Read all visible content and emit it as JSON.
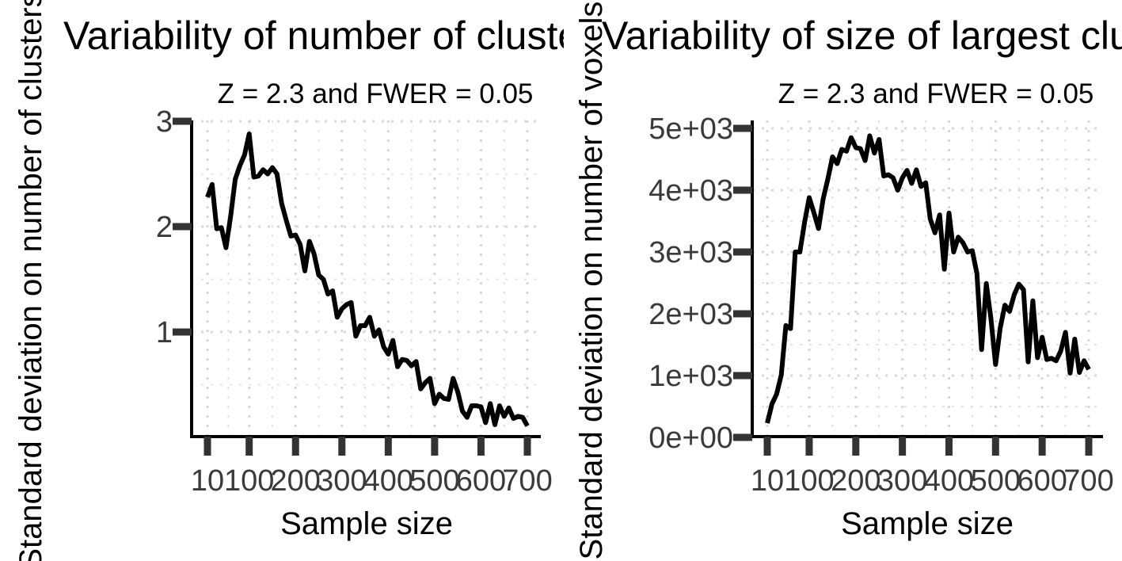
{
  "chart_data": [
    {
      "type": "line",
      "title": "Variability of number of clusters",
      "subtitle": "Z = 2.3 and FWER = 0.05",
      "xlabel": "Sample size",
      "ylabel": "Standard deviation on number of clusters",
      "xlim": [
        10,
        700
      ],
      "ylim": [
        0.1,
        3
      ],
      "x_ticks": [
        10,
        100,
        200,
        300,
        400,
        500,
        600,
        700
      ],
      "x_tick_labels": [
        "10",
        "100",
        "200",
        "300",
        "400",
        "500",
        "600",
        "700"
      ],
      "y_ticks": [
        1,
        2,
        3
      ],
      "y_tick_labels": [
        "1",
        "2",
        "3"
      ],
      "grid": true,
      "series_color": "#000000",
      "series": [
        {
          "x": [
            10,
            20,
            30,
            40,
            50,
            60,
            70,
            80,
            90,
            100,
            110,
            120,
            130,
            140,
            150,
            160,
            170,
            180,
            190,
            200,
            210,
            220,
            230,
            240,
            250,
            260,
            270,
            280,
            290,
            300,
            310,
            320,
            330,
            340,
            350,
            360,
            370,
            380,
            390,
            400,
            410,
            420,
            430,
            440,
            450,
            460,
            470,
            480,
            490,
            500,
            510,
            520,
            530,
            540,
            550,
            560,
            570,
            580,
            590,
            600,
            610,
            620,
            630,
            640,
            650,
            660,
            670,
            680,
            690,
            700
          ],
          "y": [
            2.28,
            2.4,
            1.98,
            1.99,
            1.8,
            2.1,
            2.45,
            2.58,
            2.68,
            2.88,
            2.47,
            2.48,
            2.54,
            2.5,
            2.56,
            2.5,
            2.22,
            2.06,
            1.91,
            1.92,
            1.83,
            1.58,
            1.86,
            1.74,
            1.54,
            1.5,
            1.36,
            1.39,
            1.14,
            1.22,
            1.26,
            1.28,
            0.96,
            1.06,
            1.06,
            1.14,
            0.96,
            1.02,
            0.86,
            0.79,
            0.92,
            0.67,
            0.74,
            0.73,
            0.68,
            0.72,
            0.46,
            0.52,
            0.56,
            0.32,
            0.41,
            0.37,
            0.36,
            0.56,
            0.43,
            0.25,
            0.19,
            0.3,
            0.3,
            0.29,
            0.14,
            0.32,
            0.12,
            0.3,
            0.2,
            0.28,
            0.18,
            0.2,
            0.19,
            0.11
          ]
        }
      ]
    },
    {
      "type": "line",
      "title": "Variability of size of largest cluster",
      "subtitle": "Z = 2.3 and FWER = 0.05",
      "xlabel": "Sample size",
      "ylabel": "Standard deviation on number of voxels",
      "xlim": [
        10,
        700
      ],
      "ylim": [
        0,
        5000
      ],
      "x_ticks": [
        10,
        100,
        200,
        300,
        400,
        500,
        600,
        700
      ],
      "x_tick_labels": [
        "10",
        "100",
        "200",
        "300",
        "400",
        "500",
        "600",
        "700"
      ],
      "y_ticks": [
        0,
        1000,
        2000,
        3000,
        4000,
        5000
      ],
      "y_tick_labels": [
        "0e+00",
        "1e+03",
        "2e+03",
        "3e+03",
        "4e+03",
        "5e+03"
      ],
      "grid": true,
      "series_color": "#000000",
      "series": [
        {
          "x": [
            10,
            20,
            30,
            40,
            50,
            60,
            70,
            80,
            90,
            100,
            110,
            120,
            130,
            140,
            150,
            160,
            170,
            180,
            190,
            200,
            210,
            220,
            230,
            240,
            250,
            260,
            270,
            280,
            290,
            300,
            310,
            320,
            330,
            340,
            350,
            360,
            370,
            380,
            390,
            400,
            410,
            420,
            430,
            440,
            450,
            460,
            470,
            480,
            490,
            500,
            510,
            520,
            530,
            540,
            550,
            560,
            570,
            580,
            590,
            600,
            610,
            620,
            630,
            640,
            650,
            660,
            670,
            680,
            690,
            700
          ],
          "y": [
            230,
            540,
            700,
            1010,
            1810,
            1760,
            3000,
            3000,
            3480,
            3880,
            3640,
            3380,
            3860,
            4180,
            4540,
            4430,
            4660,
            4630,
            4850,
            4690,
            4670,
            4480,
            4880,
            4600,
            4820,
            4230,
            4250,
            4200,
            4000,
            4200,
            4320,
            4110,
            4330,
            4060,
            4120,
            3530,
            3310,
            3600,
            2720,
            3630,
            3000,
            3240,
            3150,
            3000,
            3020,
            2650,
            1420,
            2490,
            1930,
            1180,
            1770,
            2140,
            2040,
            2310,
            2480,
            2390,
            1220,
            2210,
            1290,
            1620,
            1260,
            1280,
            1240,
            1400,
            1700,
            1040,
            1590,
            1050,
            1240,
            1100
          ]
        }
      ]
    }
  ]
}
